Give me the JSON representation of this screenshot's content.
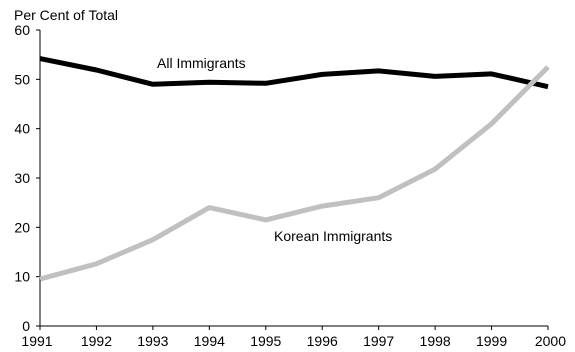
{
  "chart_data": {
    "type": "line",
    "title": "",
    "ylabel": "Per Cent of Total",
    "xlabel": "",
    "x": [
      "1991",
      "1992",
      "1993",
      "1994",
      "1995",
      "1996",
      "1997",
      "1998",
      "1999",
      "2000"
    ],
    "ylim": [
      0,
      60
    ],
    "yticks": [
      "0",
      "10",
      "20",
      "30",
      "40",
      "50",
      "60"
    ],
    "grid": false,
    "legend": "none",
    "series": [
      {
        "name": "All Immigrants",
        "color": "#000000",
        "values": [
          54.2,
          51.9,
          49.0,
          49.4,
          49.2,
          51.0,
          51.7,
          50.6,
          51.1,
          48.5
        ]
      },
      {
        "name": "Korean Immigrants",
        "color": "#c0c0c0",
        "values": [
          9.5,
          12.6,
          17.5,
          24.0,
          21.5,
          24.3,
          26.0,
          31.8,
          41.0,
          52.5
        ]
      }
    ]
  }
}
